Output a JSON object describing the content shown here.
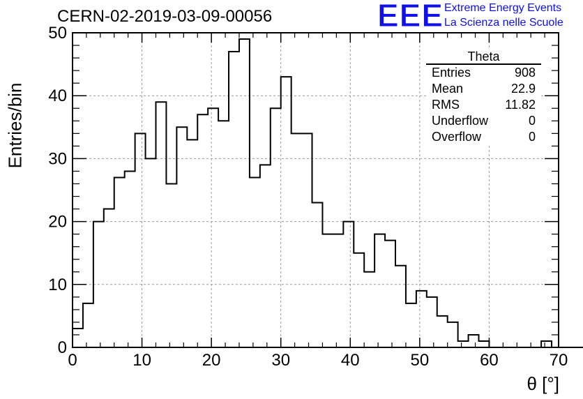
{
  "title": "CERN-02-2019-03-09-00056",
  "logo": {
    "mark": "EEE",
    "line1": "Extreme Energy Events",
    "line2": "La Scienza nelle Scuole",
    "color": "#1010e8"
  },
  "stats": {
    "name": "Theta",
    "rows": [
      {
        "label": "Entries",
        "value": "908"
      },
      {
        "label": "Mean",
        "value": "22.9"
      },
      {
        "label": "RMS",
        "value": "11.82"
      },
      {
        "label": "Underflow",
        "value": "0"
      },
      {
        "label": "Overflow",
        "value": "0"
      }
    ]
  },
  "chart_data": {
    "type": "histogram",
    "xlabel": "θ [°]",
    "ylabel": "Entries/bin",
    "xlim": [
      0,
      70
    ],
    "ylim": [
      0,
      50
    ],
    "grid": true,
    "bin_width": 1.5,
    "bin_start": 0,
    "xticks": [
      0,
      10,
      20,
      30,
      40,
      50,
      60,
      70
    ],
    "yticks": [
      0,
      10,
      20,
      30,
      40,
      50
    ],
    "values": [
      3,
      7,
      20,
      22,
      27,
      28,
      34,
      30,
      39,
      26,
      35,
      33,
      37,
      38,
      36,
      47,
      49,
      27,
      29,
      38,
      43,
      34,
      34,
      23,
      18,
      18,
      20,
      15,
      12,
      18,
      17,
      13,
      7,
      9,
      8,
      5,
      4,
      1,
      2,
      1,
      0,
      0,
      0,
      0,
      0,
      1,
      0,
      0,
      0,
      0,
      0,
      0,
      0,
      0,
      0,
      0,
      0
    ]
  }
}
